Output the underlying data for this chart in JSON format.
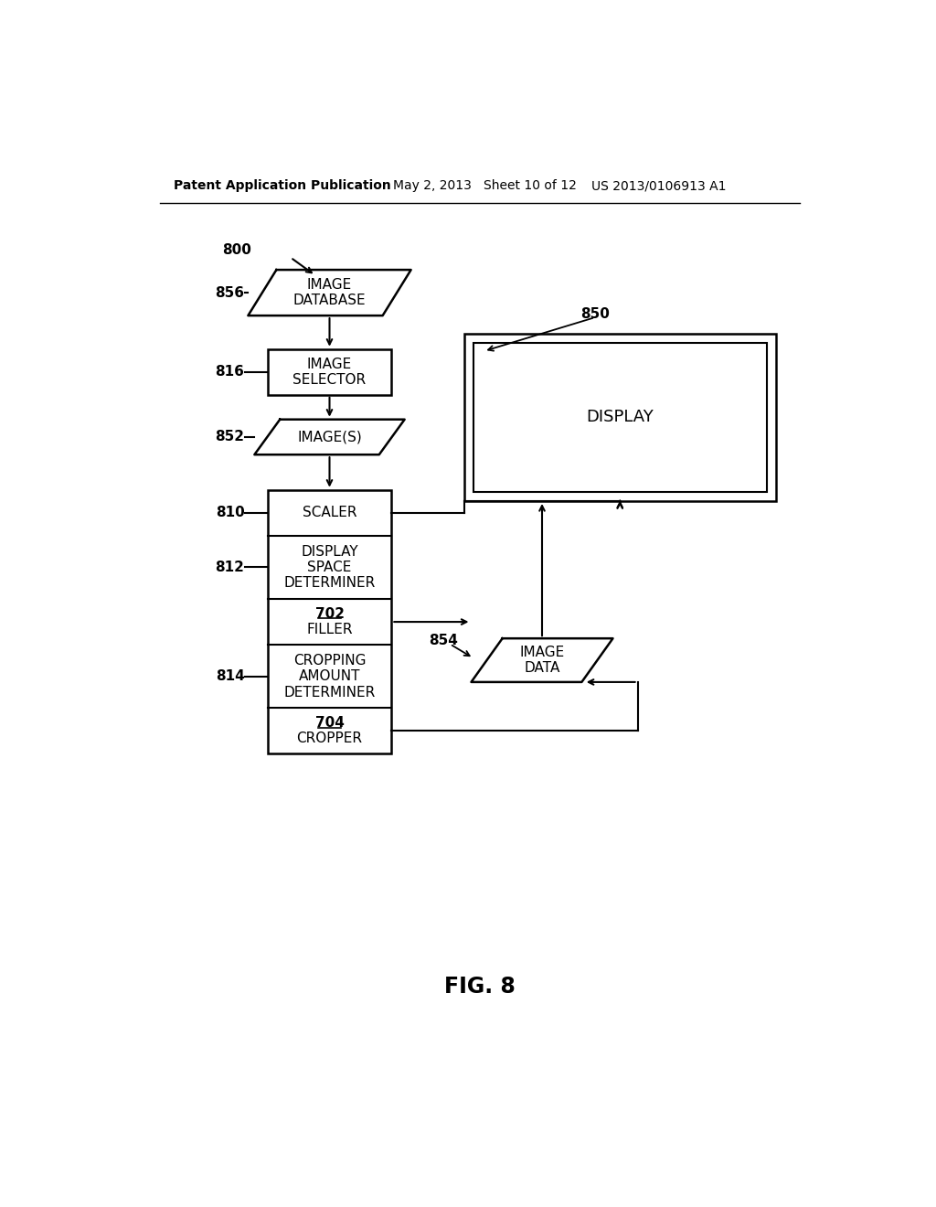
{
  "title_left": "Patent Application Publication",
  "title_mid": "May 2, 2013   Sheet 10 of 12",
  "title_right": "US 2013/0106913 A1",
  "fig_label": "FIG. 8",
  "bg_color": "#ffffff",
  "label_800": "800",
  "label_856": "856",
  "label_816": "816",
  "label_852": "852",
  "label_810": "810",
  "label_812": "812",
  "label_814": "814",
  "label_850": "850",
  "label_854": "854",
  "text_image_database": "IMAGE\nDATABASE",
  "text_image_selector": "IMAGE\nSELECTOR",
  "text_images": "IMAGE(S)",
  "text_scaler": "SCALER",
  "text_display_space": "DISPLAY\nSPACE\nDETERMINER",
  "text_filler_num": "702",
  "text_filler": "FILLER",
  "text_cropping": "CROPPING\nAMOUNT\nDETERMINER",
  "text_cropper_num": "704",
  "text_cropper": "CROPPER",
  "text_display": "DISPLAY",
  "text_image_data": "IMAGE\nDATA"
}
